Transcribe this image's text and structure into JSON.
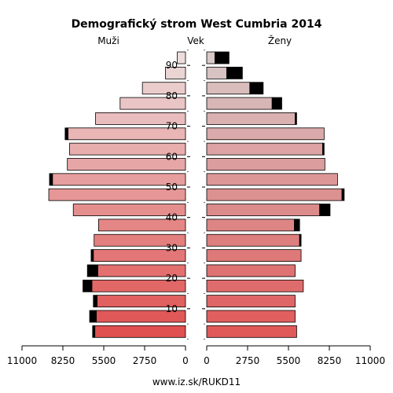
{
  "chart_data": {
    "type": "bar",
    "orientation": "horizontal",
    "title": "Demografický strom West Cumbria 2014",
    "left_label": "Muži",
    "center_label": "Vek",
    "right_label": "Ženy",
    "footer": "www.iz.sk/RUKD11",
    "xlim": [
      0,
      11000
    ],
    "x_ticks_left": [
      "11000",
      "8250",
      "5500",
      "2750",
      "0"
    ],
    "x_ticks_right": [
      "0",
      "2750",
      "5500",
      "8250",
      "11000"
    ],
    "x_tick_values": [
      11000,
      8250,
      5500,
      2750,
      0
    ],
    "age_ticks": [
      "10",
      "20",
      "30",
      "40",
      "50",
      "60",
      "70",
      "80",
      "90"
    ],
    "age_groups": [
      "0-4",
      "5-9",
      "10-14",
      "15-19",
      "20-24",
      "25-29",
      "30-34",
      "35-39",
      "40-44",
      "45-49",
      "50-54",
      "55-59",
      "60-64",
      "65-69",
      "70-74",
      "75-79",
      "80-84",
      "85-89",
      "90+"
    ],
    "series": [
      {
        "name": "Muži",
        "values": [
          6100,
          6000,
          5950,
          6300,
          5900,
          6200,
          6150,
          5850,
          7550,
          9200,
          8950,
          7950,
          7800,
          7900,
          6050,
          4400,
          2900,
          1350,
          550
        ]
      },
      {
        "name": "Ženy",
        "values": [
          6050,
          5950,
          5950,
          6500,
          5950,
          6350,
          6250,
          5900,
          7600,
          9100,
          8800,
          7950,
          7800,
          7900,
          5950,
          4400,
          2900,
          1350,
          550
        ]
      },
      {
        "name": "Muži nadbytok",
        "values": [
          150,
          450,
          250,
          600,
          700,
          150,
          0,
          0,
          0,
          0,
          200,
          0,
          0,
          200,
          0,
          0,
          0,
          0,
          0
        ]
      },
      {
        "name": "Ženy nadbytok",
        "values": [
          0,
          0,
          0,
          0,
          0,
          0,
          100,
          350,
          700,
          150,
          0,
          0,
          100,
          0,
          100,
          650,
          900,
          1050,
          950
        ]
      }
    ],
    "colors": {
      "male_young": "#e05050",
      "male_old": "#ecdcdc",
      "female_young": "#e05a5a",
      "female_old": "#d8c8c8",
      "surplus": "#000000",
      "grid": "#000000"
    }
  }
}
